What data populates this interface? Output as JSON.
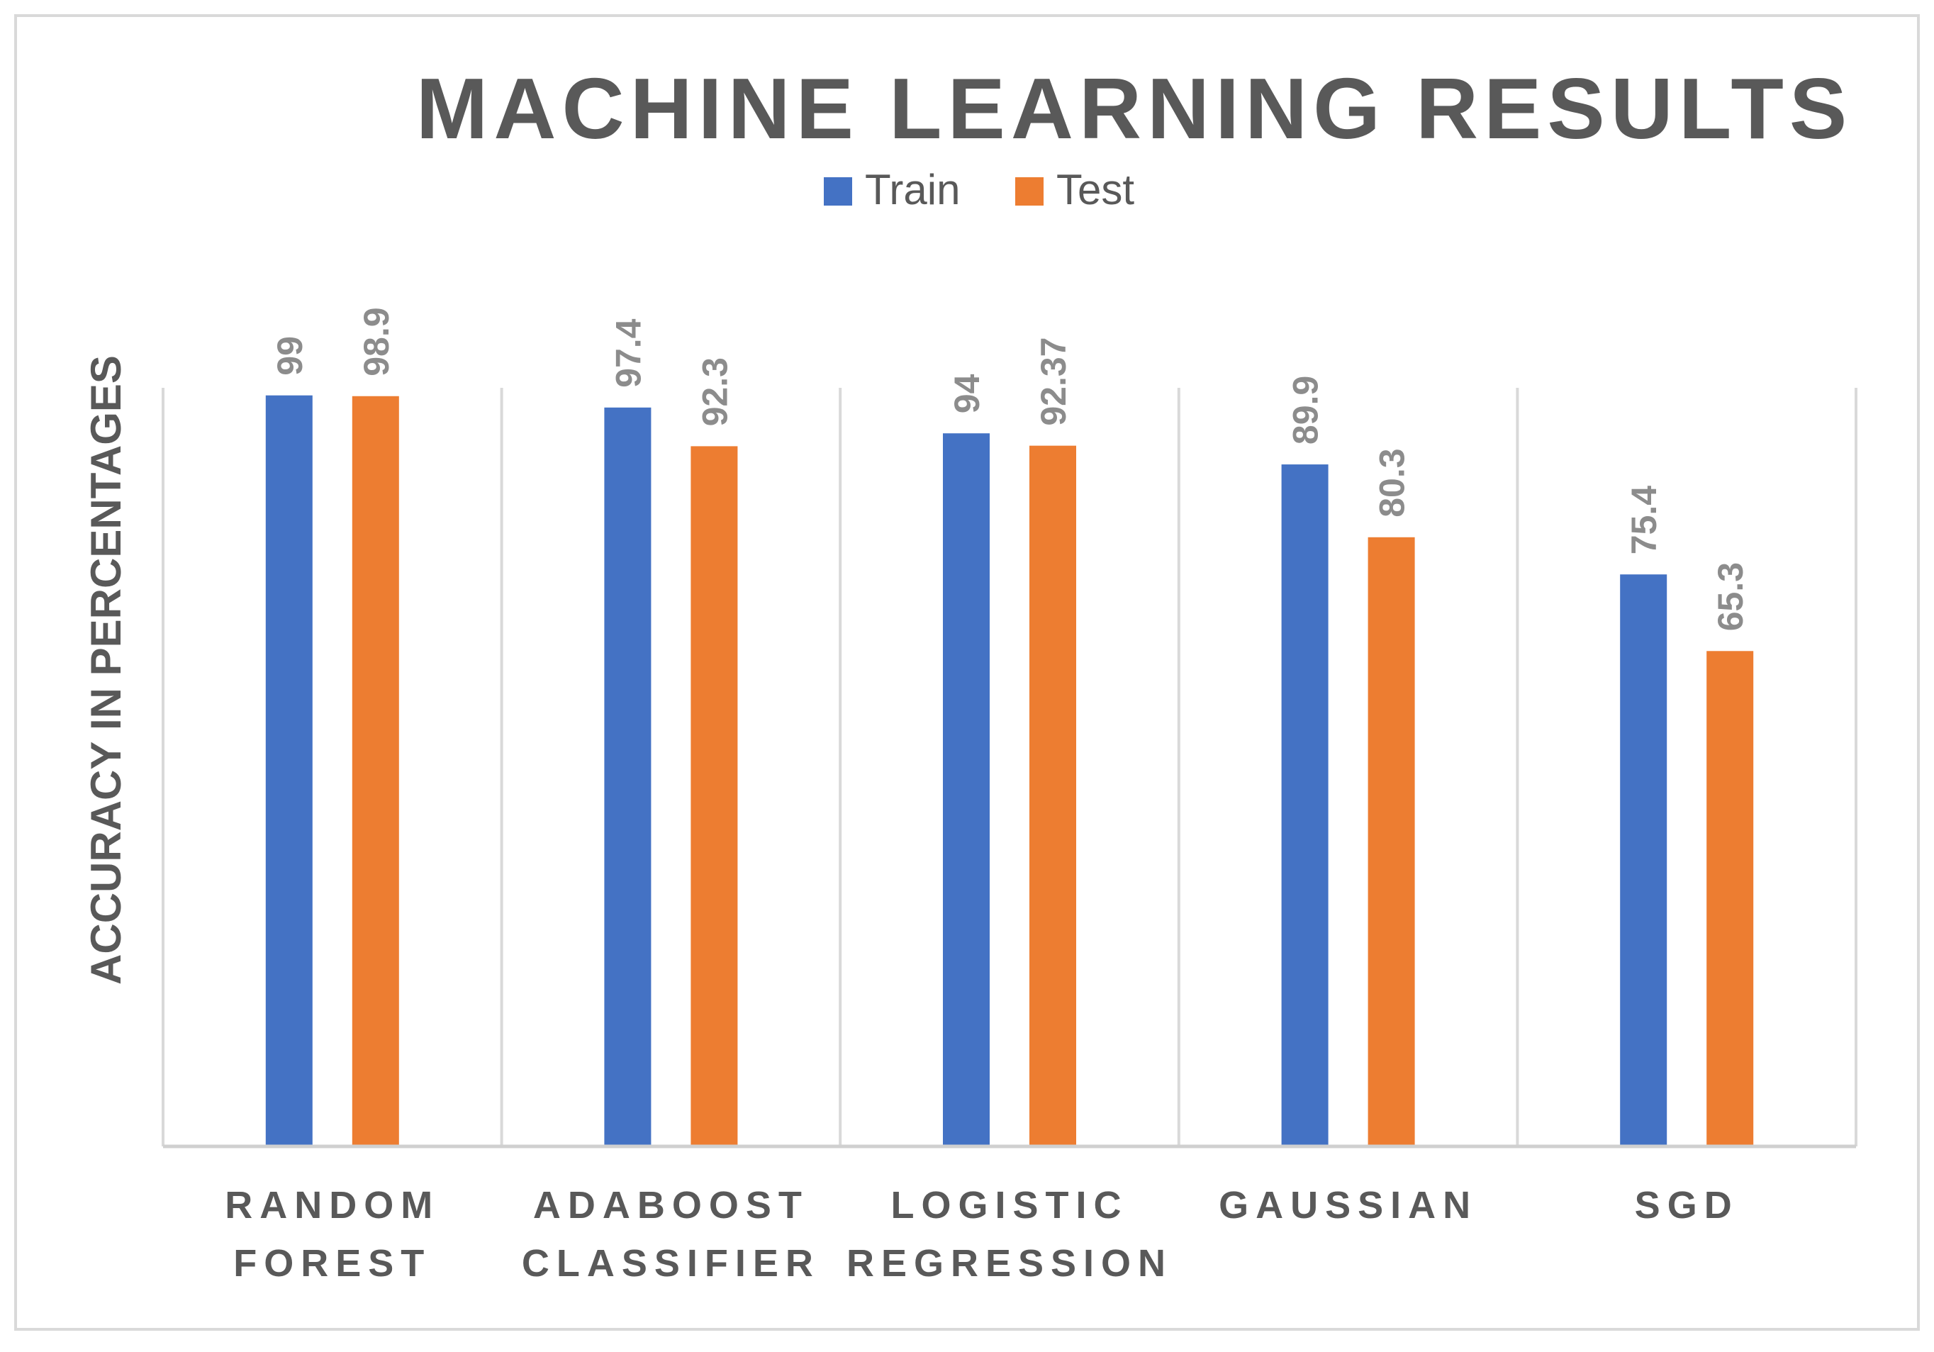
{
  "chart_data": {
    "type": "bar",
    "title": "MACHINE LEARNING RESULTS",
    "xlabel": "",
    "ylabel": "ACCURACY IN PERCENTAGES",
    "categories": [
      [
        "RANDOM",
        "FOREST"
      ],
      [
        "ADABOOST",
        "CLASSIFIER"
      ],
      [
        "LOGISTIC",
        "REGRESSION"
      ],
      [
        "GAUSSIAN"
      ],
      [
        "SGD"
      ]
    ],
    "series": [
      {
        "name": "Train",
        "color": "#4472c4",
        "values": [
          99,
          97.4,
          94,
          89.9,
          75.4
        ],
        "labels": [
          "99",
          "97.4",
          "94",
          "89.9",
          "75.4"
        ]
      },
      {
        "name": "Test",
        "color": "#ed7d31",
        "values": [
          98.9,
          92.3,
          92.37,
          80.3,
          65.3
        ],
        "labels": [
          "98.9",
          "92.3",
          "92.37",
          "80.3",
          "65.3"
        ]
      }
    ],
    "ylim": [
      0,
      100
    ],
    "grid": "vertical category separators",
    "legend": "top-center",
    "data_labels": "rotated, above bars"
  }
}
